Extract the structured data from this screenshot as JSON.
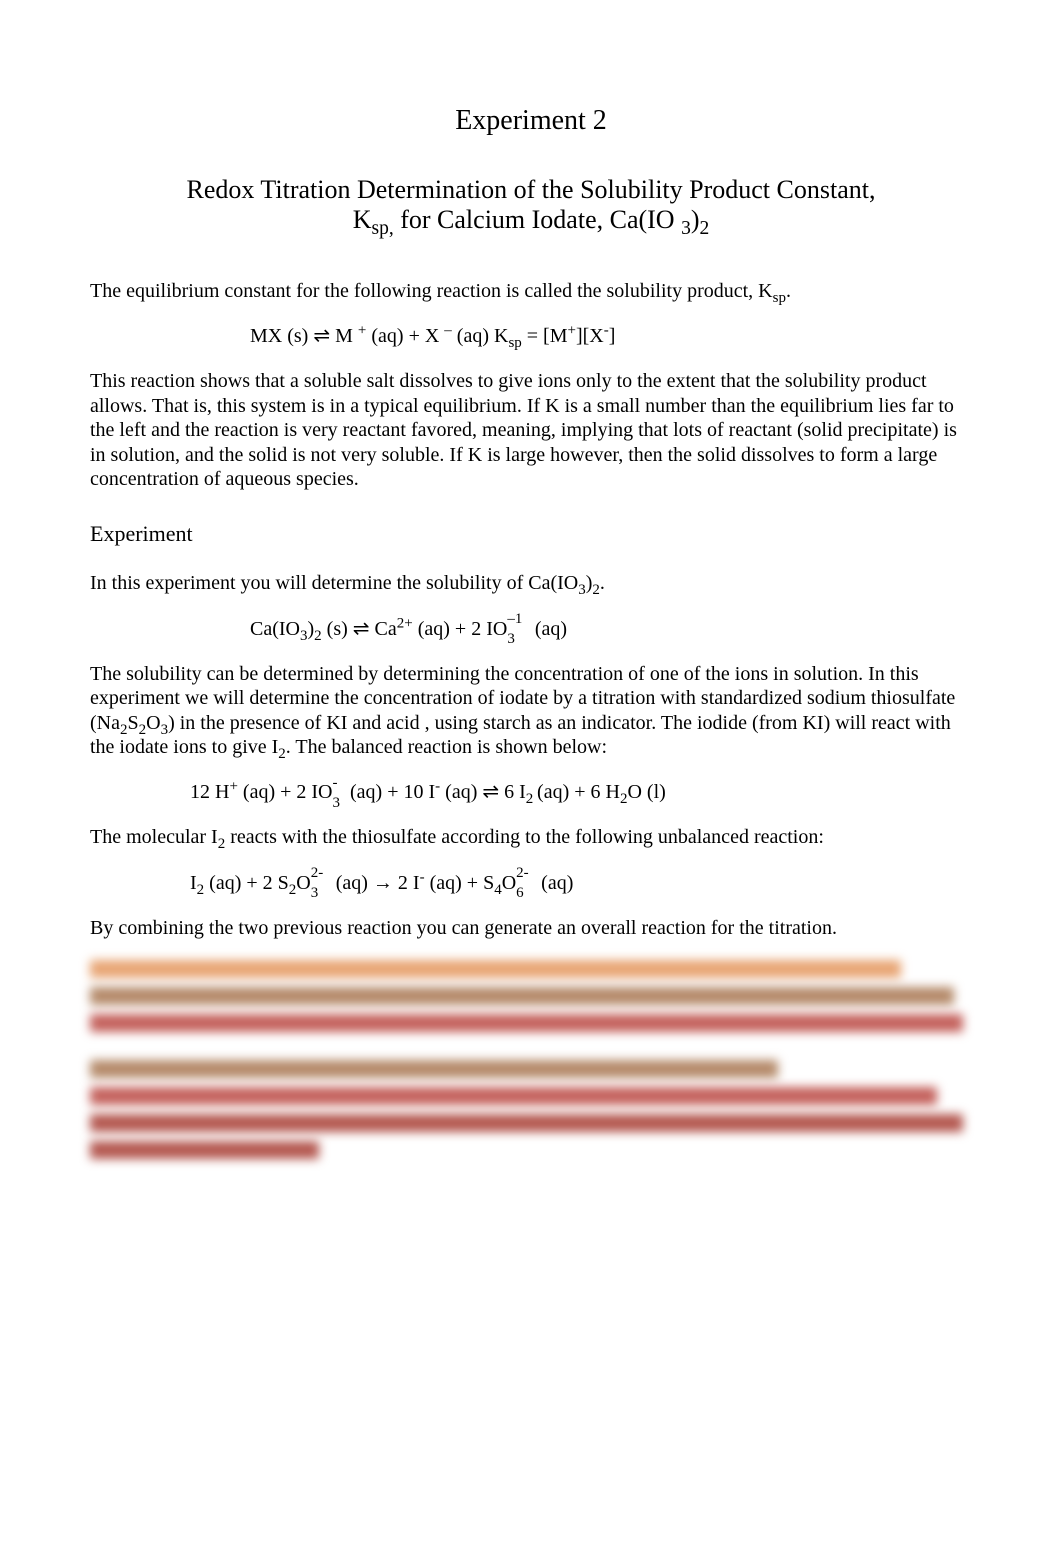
{
  "title": "Experiment 2",
  "subtitle_line1": "Redox Titration Determination of the Solubility Product Constant,",
  "subtitle2": {
    "prefix": "K",
    "sub": "sp,",
    "mid": " for Calcium Iodate, Ca(IO   ",
    "sub2": "3",
    "suffix": ")",
    "sub3": "2"
  },
  "para1": {
    "prefix": "The equilibrium constant for the following reaction is called the solubility product, K",
    "sub": "sp",
    "suffix": "."
  },
  "eq1": {
    "lhs": "MX (s) ",
    "arrow": "⇌",
    "rhs": "    M ",
    "sup1": "+",
    "mid": " (aq) + X ",
    "sup2": "–",
    "mid2": " (aq)   K",
    "sub": "sp",
    "eq": " = [M",
    "sup3": "+",
    "brk": "][X",
    "sup4": "-",
    "end": "]"
  },
  "para2": "This reaction shows that a soluble salt dissolves to give ions only to the extent that the solubility product allows. That is, this system is in a typical equilibrium. If K is a small number than the equilibrium lies far to the left and the reaction is very reactant favored, meaning, implying that lots of reactant (solid precipitate) is in solution, and the solid is not very soluble. If K is large however, then the solid dissolves to form a large concentration of aqueous species.",
  "section_heading": "Experiment",
  "para3": {
    "prefix": "In this experiment you will determine the solubility of Ca(IO",
    "sub1": "3",
    "mid": ")",
    "sub2": "2",
    "suffix": "."
  },
  "eq2": {
    "lhs": "Ca(IO",
    "sub1": "3",
    "mid1": ")",
    "sub2": "2",
    "mid2": " (s) ",
    "arrow": "⇌",
    "mid3": "    Ca",
    "sup1": "2+",
    "mid4": " (aq) + 2 IO",
    "sub3": "3",
    "sup2": " –1",
    "end": " (aq)"
  },
  "para4": {
    "prefix": "The solubility can be determined by determining the concentration of one of the ions in solution. In this experiment we will determine the concentration of iodate by a titration with standardized sodium thiosulfate (Na",
    "sub1": "2",
    "mid1": "S",
    "sub2": "2",
    "mid2": "O",
    "sub3": "3",
    "mid3": ") in the presence of  KI and acid , using starch as an indicator. The iodide (from KI) will react with the iodate ions to give I",
    "sub4": "2",
    "suffix": ".  The balanced reaction is shown below:"
  },
  "eq3": {
    "lhs": "12 H",
    "sup1": "+",
    "mid1": " (aq) + 2 IO",
    "sub1": "3",
    "sup2": "-",
    "mid2": " (aq) + 10 I",
    "sup3": "-",
    "mid3": " (aq) ",
    "arrow": "⇌",
    "mid4": "    6 I",
    "sub2": "2 ",
    "mid5": "(aq) + 6 H",
    "sub3": "2",
    "end": "O (l)"
  },
  "para5": {
    "prefix": "The molecular I",
    "sub1": "2",
    "suffix": " reacts with the  thiosulfate according to the following unbalanced reaction:"
  },
  "eq4": {
    "lhs": "I",
    "sub1": "2",
    "mid1": " (aq) + 2 S",
    "sub2": "2",
    "mid2": "O",
    "sub3": "3",
    "sup1": "2-",
    "mid3": " (aq)  → 2 I",
    "sup2": "-",
    "mid4": " (aq) + S",
    "sub4": "4",
    "mid5": "O",
    "sub5": "6",
    "sup3": "2-",
    "end": " (aq)"
  },
  "para6": "By combining the two previous reaction you can generate an overall reaction for the titration.",
  "blurred": {
    "block1_widths": [
      "92%",
      "98%",
      "99%"
    ],
    "block1_colors": [
      "#e8a574",
      "#b58a6a",
      "#c4615c"
    ],
    "block2_widths": [
      "78%",
      "96%",
      "99%",
      "26%"
    ],
    "block2_colors": [
      "#b58a6a",
      "#c4615c",
      "#b45850",
      "#b45850"
    ]
  }
}
